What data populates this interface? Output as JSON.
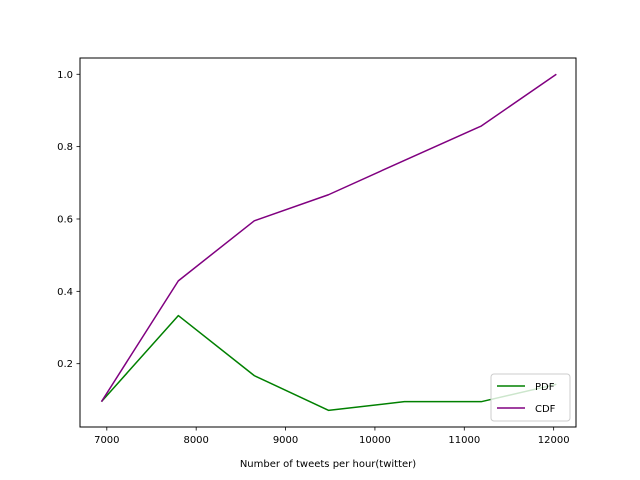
{
  "chart_data": {
    "type": "line",
    "xlabel": "Number of tweets per hour(twitter)",
    "ylabel": "",
    "xlim": [
      6700,
      12250
    ],
    "ylim": [
      0.025,
      1.045
    ],
    "xticks": [
      7000,
      8000,
      9000,
      10000,
      11000,
      12000
    ],
    "xtick_labels": [
      "7000",
      "8000",
      "9000",
      "10000",
      "11000",
      "12000"
    ],
    "yticks": [
      0.2,
      0.4,
      0.6,
      0.8,
      1.0
    ],
    "ytick_labels": [
      "0.2",
      "0.4",
      "0.6",
      "0.8",
      "1.0"
    ],
    "grid": false,
    "legend_position": "lower-right",
    "series": [
      {
        "name": "PDF",
        "color": "#008000",
        "x": [
          6940,
          7800,
          8650,
          9480,
          10330,
          11190,
          12030
        ],
        "y": [
          0.095,
          0.333,
          0.167,
          0.071,
          0.095,
          0.095,
          0.143
        ]
      },
      {
        "name": "CDF",
        "color": "#800080",
        "x": [
          6940,
          7800,
          8650,
          9480,
          10330,
          11190,
          12030
        ],
        "y": [
          0.095,
          0.429,
          0.595,
          0.667,
          0.762,
          0.857,
          1.0
        ]
      }
    ]
  }
}
